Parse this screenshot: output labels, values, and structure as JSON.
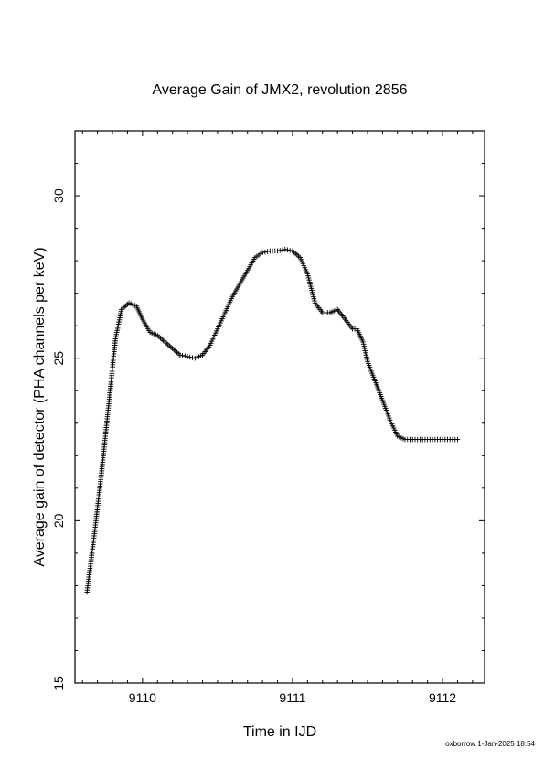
{
  "chart_data": {
    "type": "scatter",
    "marker": "plus",
    "title": "Average Gain of JMX2, revolution 2856",
    "xlabel": "Time in IJD",
    "ylabel": "Average gain of detector (PHA channels per keV)",
    "xlim": [
      9109.55,
      9112.28
    ],
    "ylim": [
      15,
      32
    ],
    "xticks": [
      9110,
      9111,
      9112
    ],
    "xtick_labels": [
      "9110",
      "9111",
      "9112"
    ],
    "yticks": [
      15,
      20,
      25,
      30
    ],
    "ytick_labels": [
      "15",
      "20",
      "25",
      "30"
    ],
    "series": [
      {
        "color": "#000000",
        "x": [
          9109.63,
          9109.68,
          9109.73,
          9109.78,
          9109.82,
          9109.86,
          9109.91,
          9109.96,
          9110.0,
          9110.05,
          9110.1,
          9110.15,
          9110.2,
          9110.25,
          9110.3,
          9110.35,
          9110.4,
          9110.45,
          9110.5,
          9110.55,
          9110.6,
          9110.65,
          9110.7,
          9110.75,
          9110.8,
          9110.85,
          9110.9,
          9110.95,
          9111.0,
          9111.05,
          9111.1,
          9111.15,
          9111.2,
          9111.25,
          9111.3,
          9111.35,
          9111.4,
          9111.43,
          9111.47,
          9111.5,
          9111.55,
          9111.6,
          9111.65,
          9111.7,
          9111.75,
          9111.8,
          9111.85,
          9111.9,
          9111.95,
          9112.0,
          9112.05,
          9112.1
        ],
        "y": [
          17.8,
          19.6,
          21.6,
          23.8,
          25.6,
          26.5,
          26.7,
          26.6,
          26.2,
          25.8,
          25.7,
          25.5,
          25.3,
          25.1,
          25.05,
          25.0,
          25.1,
          25.4,
          25.9,
          26.4,
          26.9,
          27.3,
          27.7,
          28.1,
          28.25,
          28.3,
          28.3,
          28.35,
          28.3,
          28.1,
          27.6,
          26.7,
          26.4,
          26.4,
          26.5,
          26.2,
          25.9,
          25.9,
          25.5,
          24.9,
          24.3,
          23.7,
          23.1,
          22.6,
          22.5,
          22.5,
          22.5,
          22.5,
          22.5,
          22.5,
          22.5,
          22.5
        ]
      }
    ]
  },
  "footer": "oxborrow 1-Jan-2025 18:54"
}
